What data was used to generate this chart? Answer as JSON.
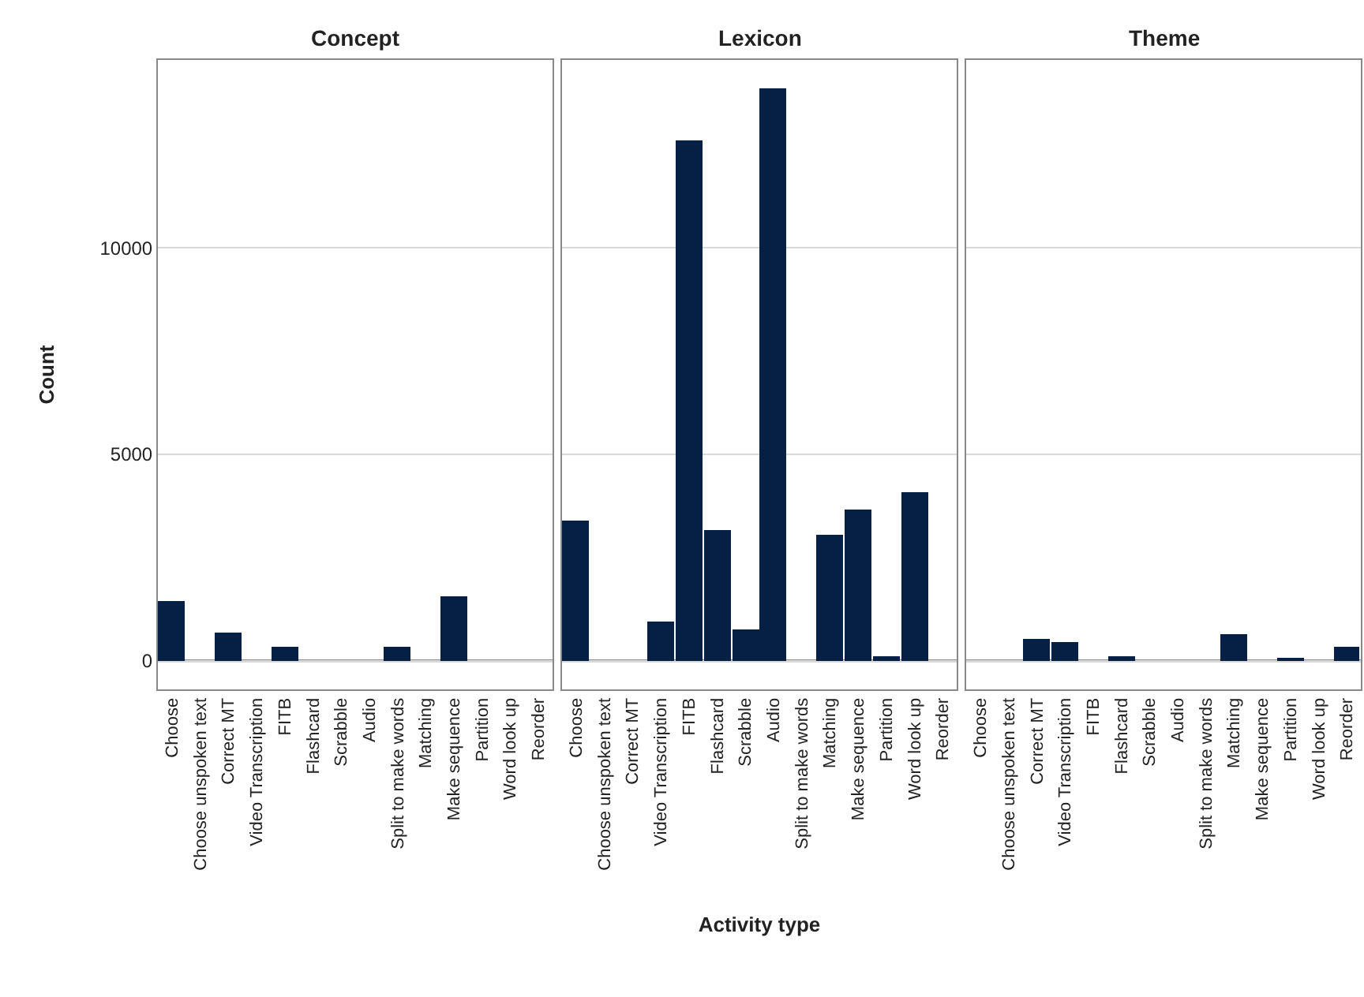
{
  "chart_data": [
    {
      "type": "bar",
      "title": "Concept",
      "ylabel": "Count",
      "categories": [
        "Choose",
        "Choose unspoken text",
        "Correct MT",
        "Video Transcription",
        "FITB",
        "Flashcard",
        "Scrabble",
        "Audio",
        "Split to make words",
        "Matching",
        "Make sequence",
        "Partition",
        "Word look up",
        "Reorder"
      ],
      "series": [
        {
          "color": "#061f45",
          "values": [
            1450,
            0,
            700,
            0,
            320,
            0,
            0,
            0,
            320,
            0,
            1560,
            0,
            0,
            0
          ]
        }
      ],
      "ylim": [
        -693,
        14553
      ],
      "yticks": [
        0,
        5000,
        10000
      ],
      "grid": "y",
      "ref_lines": [
        {
          "axis": "y",
          "value": 0,
          "color": "#666666"
        }
      ]
    },
    {
      "type": "bar",
      "title": "Lexicon",
      "xlabel": "Activity type",
      "categories": [
        "Choose",
        "Choose unspoken text",
        "Correct MT",
        "Video Transcription",
        "FITB",
        "Flashcard",
        "Scrabble",
        "Audio",
        "Split to make words",
        "Matching",
        "Make sequence",
        "Partition",
        "Word look up",
        "Reorder"
      ],
      "series": [
        {
          "color": "#061f45",
          "values": [
            3380,
            0,
            0,
            950,
            12600,
            3160,
            760,
            13860,
            0,
            3040,
            3680,
            110,
            4100,
            0
          ]
        }
      ],
      "ylim": [
        -693,
        14553
      ],
      "yticks": [
        0,
        5000,
        10000
      ],
      "grid": "y",
      "tick_labels": "x",
      "ref_lines": [
        {
          "axis": "y",
          "value": 0,
          "color": "#666666"
        }
      ]
    },
    {
      "type": "bar",
      "title": "Theme",
      "categories": [
        "Choose",
        "Choose unspoken text",
        "Correct MT",
        "Video Transcription",
        "FITB",
        "Flashcard",
        "Scrabble",
        "Audio",
        "Split to make words",
        "Matching",
        "Make sequence",
        "Partition",
        "Word look up",
        "Reorder"
      ],
      "series": [
        {
          "color": "#061f45",
          "values": [
            0,
            0,
            530,
            460,
            0,
            110,
            0,
            0,
            0,
            650,
            0,
            80,
            0,
            340
          ]
        }
      ],
      "ylim": [
        -693,
        14553
      ],
      "yticks": [
        0,
        5000,
        10000
      ],
      "grid": "y",
      "tick_labels": "x",
      "ref_lines": [
        {
          "axis": "y",
          "value": 0,
          "color": "#666666"
        }
      ]
    }
  ]
}
